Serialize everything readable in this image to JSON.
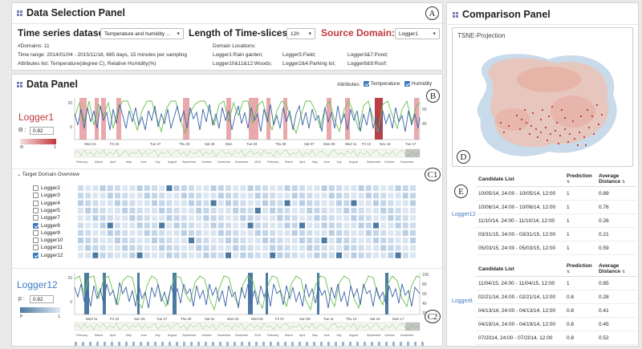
{
  "selection_panel": {
    "title": "Data Selection Panel",
    "badge": "A",
    "dataset_label": "Time series dataset:",
    "dataset_value": "Temperature and humidity ...",
    "slice_label": "Length of Time-slices:",
    "slice_value": "12h",
    "source_label": "Source Domain:",
    "source_value": "Logger1",
    "domains": "#Domains: 11",
    "time_range": "Time range: 2014/01/04 - 2015/11/18, 685 days, 15 minutes per sampling",
    "attributes": "Attributes list: Temperature(degree C), Relative Humidity(%)",
    "locations_title": "Domain Locations:",
    "locations": [
      "Logger1:Rain garden;",
      "Logger5:Field;",
      "Logger3&7:Pond;",
      "Logger10&11&12:Woods;",
      "Logger2&4:Parking lot;",
      "Logger8&9:Roof;"
    ]
  },
  "data_panel": {
    "title": "Data Panel",
    "badge_b": "B",
    "badge_c1": "C1",
    "badge_c2": "C2",
    "attributes_label": "Attributes:",
    "attr_temperature": "Temperature",
    "attr_humidity": "Humidity",
    "source": {
      "name": "Logger1",
      "theta_label": "Θ :",
      "theta_value": "0.82",
      "legend_left": "Θ",
      "legend_right": "1",
      "y_ticks": [
        "20",
        "0"
      ],
      "y2_ticks": [
        "60",
        "40"
      ],
      "x_ticks": [
        "Wed 21",
        "Fri 23",
        "Tue 27",
        "Thu 29",
        "Sat 28",
        "Mon",
        "Tue 03",
        "Thu 05",
        "Sat 07",
        "Mon 09",
        "Wed 11",
        "Fri 13",
        "Nov 15",
        "Tue 17"
      ],
      "overview_ticks": [
        "February",
        "March",
        "April",
        "May",
        "June",
        "July",
        "August",
        "September",
        "October",
        "November",
        "December",
        "2015",
        "February",
        "March",
        "April",
        "May",
        "June",
        "July",
        "August",
        "September",
        "October",
        "November"
      ]
    },
    "target_overview": {
      "title": "Target Domain Overview",
      "loggers": [
        {
          "name": "Logger2",
          "checked": false
        },
        {
          "name": "Logger3",
          "checked": false
        },
        {
          "name": "Logger4",
          "checked": false
        },
        {
          "name": "Logger5",
          "checked": false
        },
        {
          "name": "Logger7",
          "checked": false
        },
        {
          "name": "Logger8",
          "checked": true
        },
        {
          "name": "Logger9",
          "checked": false
        },
        {
          "name": "Logger10",
          "checked": false
        },
        {
          "name": "Logger11",
          "checked": false
        },
        {
          "name": "Logger12",
          "checked": true
        }
      ]
    },
    "target": {
      "name": "Logger12",
      "p_label": "p :",
      "p_value": "0.82",
      "legend_left": "P",
      "legend_right": "1",
      "y_ticks": [
        "20",
        "0"
      ],
      "y2_ticks": [
        "100",
        "80",
        "60",
        "40",
        "20"
      ],
      "x_ticks": [
        "Wed 21",
        "Fri 23",
        "Sun 25",
        "Tue 27",
        "Thu 29",
        "Sat 01",
        "Mon 03",
        "Wed 05",
        "Fri 07",
        "Sun 09",
        "Tue 11",
        "Thu 13",
        "Sat 15",
        "Mon 17"
      ],
      "overview_ticks": [
        "February",
        "March",
        "April",
        "May",
        "June",
        "July",
        "August",
        "September",
        "October",
        "November",
        "December",
        "2015",
        "February",
        "March",
        "April",
        "May",
        "June",
        "July",
        "August",
        "September",
        "October",
        "November"
      ]
    }
  },
  "comparison_panel": {
    "title": "Comparison Panel",
    "tsne_title": "TSNE-Projection",
    "badge_d": "D",
    "badge_e": "E",
    "tables": [
      {
        "logger": "Logger12",
        "headers": [
          "Candidate List",
          "Prediction",
          "Average Distance"
        ],
        "rows": [
          [
            "10/05/14, 24:00 - 10/05/14, 12:00",
            "1",
            "0.89"
          ],
          [
            "10/06/14, 24:00 - 10/06/14, 12:00",
            "1",
            "0.76"
          ],
          [
            "11/10/14, 24:00 - 11/10/14, 12:00",
            "1",
            "0.26"
          ],
          [
            "03/31/15, 24:00 - 03/31/15, 12:00",
            "1",
            "0.21"
          ],
          [
            "05/03/15, 24:00 - 05/03/15, 12:00",
            "1",
            "0.59"
          ]
        ]
      },
      {
        "logger": "Logger8",
        "headers": [
          "Candidate List",
          "Prediction",
          "Average Distance"
        ],
        "rows": [
          [
            "11/04/15, 24:00 - 11/04/15, 12:00",
            "1",
            "0.85"
          ],
          [
            "02/21/14, 24:00 - 02/21/14, 12:00",
            "0.8",
            "0.28"
          ],
          [
            "04/13/14, 24:00 - 04/13/14, 12:00",
            "0.8",
            "0.41"
          ],
          [
            "04/19/14, 24:00 - 04/19/14, 12:00",
            "0.8",
            "0.45"
          ],
          [
            "07/2014, 24:00 - 07/2014, 12:00",
            "0.8",
            "0.52"
          ]
        ]
      }
    ]
  },
  "colors": {
    "source_accent": "#c0393e",
    "target_accent": "#3e7bbf",
    "temperature": "#3b62a8",
    "humidity": "#6abf4b",
    "source_band": "#e9a9ac",
    "target_band": "#4d7aa3"
  }
}
